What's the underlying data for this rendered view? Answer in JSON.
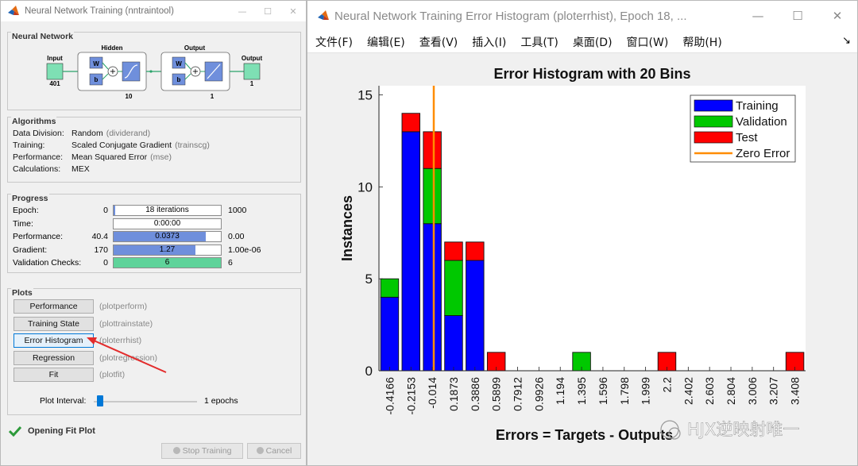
{
  "left_window": {
    "title": "Neural Network Training (nntraintool)",
    "network": {
      "section_title": "Neural Network",
      "input_label": "Input",
      "input_size": "401",
      "hidden_label": "Hidden",
      "hidden_size": "10",
      "output_layer_label": "Output",
      "output_layer_size": "1",
      "output_label": "Output",
      "output_size": "1",
      "w_label": "W",
      "b_label": "b"
    },
    "algorithms": {
      "section_title": "Algorithms",
      "rows": [
        {
          "key": "Data Division:",
          "value": "Random",
          "note": "(dividerand)"
        },
        {
          "key": "Training:",
          "value": "Scaled Conjugate Gradient",
          "note": "(trainscg)"
        },
        {
          "key": "Performance:",
          "value": "Mean Squared Error",
          "note": "(mse)"
        },
        {
          "key": "Calculations:",
          "value": "MEX",
          "note": ""
        }
      ]
    },
    "progress": {
      "section_title": "Progress",
      "rows": [
        {
          "label": "Epoch:",
          "min": "0",
          "text": "18 iterations",
          "max": "1000",
          "fill": 0.018,
          "fill_color": "#6f8fdc"
        },
        {
          "label": "Time:",
          "min": "",
          "text": "0:00:00",
          "max": "",
          "fill": 0,
          "fill_color": "#6f8fdc"
        },
        {
          "label": "Performance:",
          "min": "40.4",
          "text": "0.0373",
          "max": "0.00",
          "fill": 0.86,
          "fill_color": "#6f8fdc"
        },
        {
          "label": "Gradient:",
          "min": "170",
          "text": "1.27",
          "max": "1.00e-06",
          "fill": 0.76,
          "fill_color": "#6f8fdc"
        },
        {
          "label": "Validation Checks:",
          "min": "0",
          "text": "6",
          "max": "6",
          "fill": 1.0,
          "fill_color": "#5fd39a"
        }
      ]
    },
    "plots": {
      "section_title": "Plots",
      "buttons": [
        {
          "label": "Performance",
          "note": "(plotperform)"
        },
        {
          "label": "Training State",
          "note": "(plottrainstate)"
        },
        {
          "label": "Error Histogram",
          "note": "(ploterrhist)"
        },
        {
          "label": "Regression",
          "note": "(plotregression)"
        },
        {
          "label": "Fit",
          "note": "(plotfit)"
        }
      ],
      "interval_label": "Plot Interval:",
      "interval_value": "1 epochs",
      "interval_slider_fraction": 0.03
    },
    "status_text": "Opening Fit Plot",
    "stop_button": "Stop Training",
    "cancel_button": "Cancel"
  },
  "right_window": {
    "title": "Neural Network Training Error Histogram (ploterrhist), Epoch 18, ...",
    "menu": [
      "文件(F)",
      "编辑(E)",
      "查看(V)",
      "插入(I)",
      "工具(T)",
      "桌面(D)",
      "窗口(W)",
      "帮助(H)"
    ]
  },
  "watermark": "HJX逆映射唯一",
  "colors": {
    "training": "#0000ff",
    "validation": "#00c800",
    "test": "#ff0000",
    "zero_error": "#ff8c00"
  },
  "chart_data": {
    "type": "bar",
    "stacked": true,
    "title": "Error Histogram with 20 Bins",
    "xlabel": "Errors = Targets - Outputs",
    "ylabel": "Instances",
    "categories": [
      "-0.4166",
      "-0.2153",
      "-0.014",
      "0.1873",
      "0.3886",
      "0.5899",
      "0.7912",
      "0.9926",
      "1.194",
      "1.395",
      "1.596",
      "1.798",
      "1.999",
      "2.2",
      "2.402",
      "2.603",
      "2.804",
      "3.006",
      "3.207",
      "3.408"
    ],
    "series": [
      {
        "name": "Training",
        "values": [
          4,
          13,
          8,
          3,
          6,
          0,
          0,
          0,
          0,
          0,
          0,
          0,
          0,
          0,
          0,
          0,
          0,
          0,
          0,
          0
        ]
      },
      {
        "name": "Validation",
        "values": [
          1,
          0,
          3,
          3,
          0,
          0,
          0,
          0,
          0,
          1,
          0,
          0,
          0,
          0,
          0,
          0,
          0,
          0,
          0,
          0
        ]
      },
      {
        "name": "Test",
        "values": [
          0,
          1,
          2,
          1,
          1,
          1,
          0,
          0,
          0,
          0,
          0,
          0,
          0,
          1,
          0,
          0,
          0,
          0,
          0,
          1
        ]
      }
    ],
    "zero_error_line": {
      "name": "Zero Error",
      "x": 0
    },
    "yticks": [
      0,
      5,
      10,
      15
    ],
    "ylim": [
      0,
      15.5
    ],
    "legend_position": "top-right",
    "grid": false
  }
}
